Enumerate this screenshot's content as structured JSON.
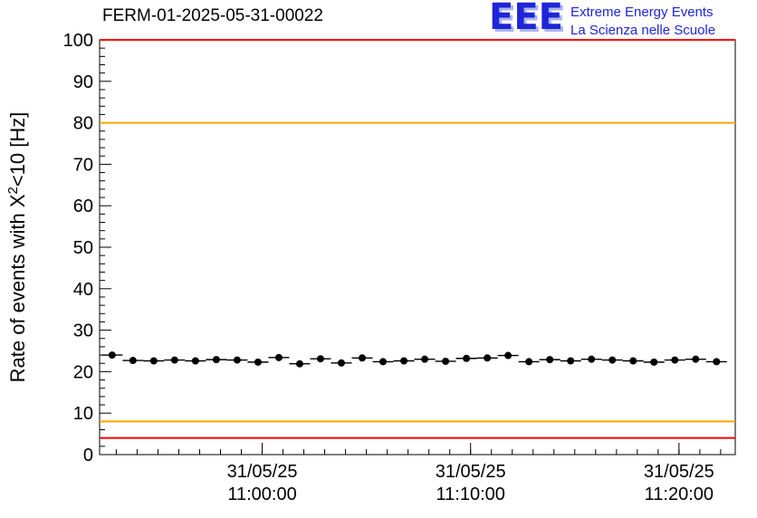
{
  "logo": {
    "acronym": "EEE",
    "line1": "Extreme Energy Events",
    "line2": "La Scienza nelle Scuole"
  },
  "chart_data": {
    "type": "scatter",
    "title": "FERM-01-2025-05-31-00022",
    "ylabel": "Rate of events with X²<10 [Hz]",
    "xlabel": "",
    "ylim": [
      0,
      100
    ],
    "y_major_step": 10,
    "y_minor_step": 2,
    "xlim_minutes": [
      -7.8,
      22.7
    ],
    "x_minor_step_minutes": 1,
    "grid": false,
    "legend": "none",
    "x_ticks": [
      {
        "minute": 0,
        "date": "31/05/25",
        "time": "11:00:00"
      },
      {
        "minute": 10,
        "date": "31/05/25",
        "time": "11:10:00"
      },
      {
        "minute": 20,
        "date": "31/05/25",
        "time": "11:20:00"
      }
    ],
    "reference_lines": [
      {
        "y": 100,
        "color": "#ff0000"
      },
      {
        "y": 80,
        "color": "#ffa500"
      },
      {
        "y": 8,
        "color": "#ffa500"
      },
      {
        "y": 4,
        "color": "#ff0000"
      }
    ],
    "marker": {
      "color": "#000000",
      "radius": 4
    },
    "points": {
      "ex": 0.5,
      "ey": 0.6,
      "t": [
        -7.2,
        -6.2,
        -5.2,
        -4.2,
        -3.2,
        -2.2,
        -1.2,
        -0.2,
        0.8,
        1.8,
        2.8,
        3.8,
        4.8,
        5.8,
        6.8,
        7.8,
        8.8,
        9.8,
        10.8,
        11.8,
        12.8,
        13.8,
        14.8,
        15.8,
        16.8,
        17.8,
        18.8,
        19.8,
        20.8,
        21.8
      ],
      "y": [
        24.0,
        22.7,
        22.6,
        22.8,
        22.6,
        22.9,
        22.8,
        22.3,
        23.4,
        21.9,
        23.1,
        22.1,
        23.3,
        22.4,
        22.6,
        23.0,
        22.5,
        23.2,
        23.3,
        23.9,
        22.4,
        22.9,
        22.6,
        23.0,
        22.8,
        22.6,
        22.3,
        22.8,
        23.0,
        22.4
      ]
    }
  }
}
